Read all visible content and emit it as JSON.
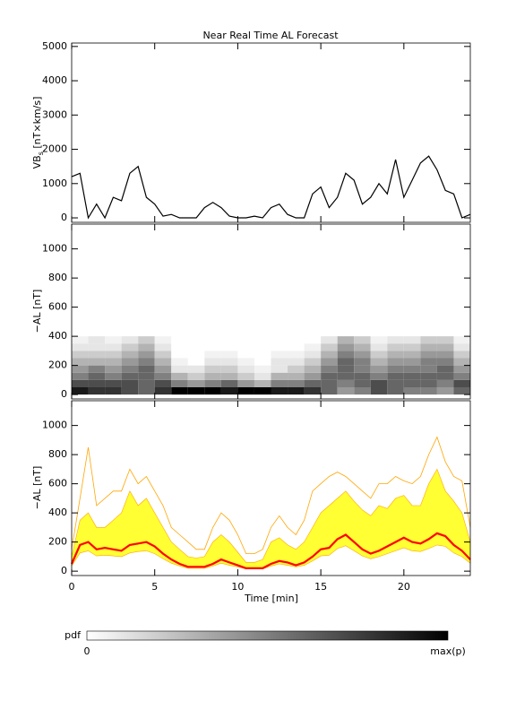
{
  "chart_data": [
    {
      "type": "line",
      "title": "Near Real Time AL Forecast",
      "ylabel": [
        "VB",
        "s",
        " [nT×km/s]"
      ],
      "x": [
        0,
        0.5,
        1,
        1.5,
        2,
        2.5,
        3,
        3.5,
        4,
        4.5,
        5,
        5.5,
        6,
        6.5,
        7,
        7.5,
        8,
        8.5,
        9,
        9.5,
        10,
        10.5,
        11,
        11.5,
        12,
        12.5,
        13,
        13.5,
        14,
        14.5,
        15,
        15.5,
        16,
        16.5,
        17,
        17.5,
        18,
        18.5,
        19,
        19.5,
        20,
        20.5,
        21,
        21.5,
        22,
        22.5,
        23,
        23.5,
        24
      ],
      "values": [
        1200,
        1300,
        0,
        400,
        0,
        600,
        500,
        1300,
        1500,
        600,
        400,
        50,
        100,
        0,
        0,
        0,
        300,
        450,
        300,
        50,
        0,
        0,
        50,
        0,
        300,
        400,
        100,
        0,
        0,
        700,
        900,
        300,
        600,
        1300,
        1100,
        400,
        600,
        1000,
        700,
        1700,
        600,
        1100,
        1600,
        1800,
        1400,
        800,
        700,
        0,
        100
      ],
      "color": "#000000",
      "xlim": [
        0,
        24
      ],
      "ylim": [
        -130,
        5100
      ],
      "yticks": [
        0,
        1000,
        2000,
        3000,
        4000,
        5000
      ]
    },
    {
      "type": "heatmap",
      "ylabel": "−AL [nT]",
      "xlim": [
        0,
        24
      ],
      "ylim": [
        -30,
        1170
      ],
      "yticks": [
        0,
        200,
        400,
        600,
        800,
        1000
      ],
      "x_edges": [
        0,
        1,
        2,
        3,
        4,
        5,
        6,
        7,
        8,
        9,
        10,
        11,
        12,
        13,
        14,
        15,
        16,
        17,
        18,
        19,
        20,
        21,
        22,
        23,
        24
      ],
      "y_edges": [
        0,
        50,
        100,
        150,
        200,
        250,
        300,
        350,
        400
      ],
      "z": [
        [
          0.9,
          0.8,
          0.8,
          0.7,
          0.6,
          0.8,
          1.0,
          1.0,
          1.0,
          0.9,
          1.0,
          1.0,
          0.9,
          0.9,
          0.8,
          0.6,
          0.4,
          0.5,
          0.7,
          0.6,
          0.5,
          0.5,
          0.4,
          0.6
        ],
        [
          0.7,
          0.7,
          0.7,
          0.7,
          0.6,
          0.7,
          0.5,
          0.4,
          0.5,
          0.6,
          0.4,
          0.3,
          0.5,
          0.5,
          0.6,
          0.6,
          0.5,
          0.6,
          0.7,
          0.6,
          0.6,
          0.6,
          0.5,
          0.7
        ],
        [
          0.5,
          0.6,
          0.5,
          0.6,
          0.6,
          0.5,
          0.3,
          0.2,
          0.3,
          0.3,
          0.2,
          0.1,
          0.3,
          0.3,
          0.4,
          0.6,
          0.6,
          0.6,
          0.5,
          0.6,
          0.6,
          0.6,
          0.6,
          0.5
        ],
        [
          0.4,
          0.5,
          0.4,
          0.5,
          0.6,
          0.4,
          0.1,
          0.1,
          0.2,
          0.2,
          0.1,
          0.05,
          0.1,
          0.2,
          0.3,
          0.5,
          0.6,
          0.5,
          0.4,
          0.5,
          0.5,
          0.5,
          0.6,
          0.4
        ],
        [
          0.3,
          0.3,
          0.3,
          0.4,
          0.5,
          0.3,
          0.05,
          0,
          0.1,
          0.1,
          0.05,
          0,
          0.1,
          0.1,
          0.2,
          0.4,
          0.6,
          0.5,
          0.3,
          0.4,
          0.4,
          0.5,
          0.5,
          0.3
        ],
        [
          0.2,
          0.2,
          0.2,
          0.3,
          0.4,
          0.2,
          0,
          0,
          0.05,
          0.05,
          0,
          0,
          0.05,
          0.05,
          0.1,
          0.3,
          0.5,
          0.4,
          0.2,
          0.3,
          0.3,
          0.4,
          0.4,
          0.2
        ],
        [
          0.1,
          0.1,
          0.1,
          0.2,
          0.3,
          0.1,
          0,
          0,
          0,
          0,
          0,
          0,
          0,
          0,
          0.05,
          0.2,
          0.4,
          0.3,
          0.1,
          0.2,
          0.2,
          0.3,
          0.3,
          0.1
        ],
        [
          0.05,
          0.1,
          0.05,
          0.1,
          0.2,
          0.05,
          0,
          0,
          0,
          0,
          0,
          0,
          0,
          0,
          0,
          0.1,
          0.3,
          0.2,
          0.05,
          0.1,
          0.1,
          0.2,
          0.2,
          0.05
        ]
      ],
      "colorbar": {
        "label": "pdf",
        "min_label": "0",
        "max_label": "max(p)"
      }
    },
    {
      "type": "band",
      "ylabel": "−AL [nT]",
      "xlabel": "Time [min]",
      "xlim": [
        0,
        24
      ],
      "xticks": [
        0,
        5,
        10,
        15,
        20
      ],
      "ylim": [
        -30,
        1170
      ],
      "yticks": [
        0,
        200,
        400,
        600,
        800,
        1000
      ],
      "x": [
        0,
        0.5,
        1,
        1.5,
        2,
        2.5,
        3,
        3.5,
        4,
        4.5,
        5,
        5.5,
        6,
        6.5,
        7,
        7.5,
        8,
        8.5,
        9,
        9.5,
        10,
        10.5,
        11,
        11.5,
        12,
        12.5,
        13,
        13.5,
        14,
        14.5,
        15,
        15.5,
        16,
        16.5,
        17,
        17.5,
        18,
        18.5,
        19,
        19.5,
        20,
        20.5,
        21,
        21.5,
        22,
        22.5,
        23,
        23.5,
        24
      ],
      "band": {
        "color": "#ffff33",
        "edge": "#ffa500",
        "lower": [
          35,
          125,
          140,
          105,
          110,
          105,
          100,
          125,
          135,
          140,
          120,
          85,
          55,
          35,
          20,
          20,
          20,
          35,
          55,
          40,
          30,
          15,
          15,
          15,
          35,
          50,
          40,
          30,
          40,
          70,
          105,
          110,
          155,
          175,
          140,
          105,
          85,
          100,
          120,
          140,
          160,
          140,
          135,
          155,
          180,
          170,
          125,
          100,
          55
        ],
        "upper": [
          100,
          350,
          400,
          300,
          300,
          350,
          400,
          550,
          450,
          500,
          400,
          300,
          200,
          150,
          100,
          90,
          100,
          200,
          250,
          200,
          130,
          60,
          60,
          80,
          200,
          230,
          180,
          150,
          200,
          300,
          400,
          450,
          500,
          550,
          480,
          420,
          380,
          450,
          430,
          500,
          520,
          450,
          450,
          600,
          700,
          550,
          480,
          400,
          200
        ]
      },
      "series": [
        {
          "color": "#ffa500",
          "values": [
            150,
            500,
            850,
            450,
            500,
            550,
            550,
            700,
            600,
            650,
            550,
            450,
            300,
            250,
            200,
            150,
            150,
            300,
            400,
            350,
            250,
            120,
            120,
            150,
            300,
            380,
            300,
            250,
            350,
            550,
            600,
            650,
            680,
            650,
            600,
            550,
            500,
            600,
            600,
            650,
            620,
            600,
            650,
            800,
            920,
            750,
            650,
            620,
            300
          ]
        },
        {
          "color": "#ff0000",
          "values": [
            50,
            180,
            200,
            150,
            160,
            150,
            140,
            180,
            190,
            200,
            170,
            120,
            80,
            50,
            30,
            30,
            30,
            50,
            80,
            60,
            40,
            20,
            20,
            20,
            50,
            70,
            60,
            40,
            60,
            100,
            150,
            160,
            220,
            250,
            200,
            150,
            120,
            140,
            170,
            200,
            230,
            200,
            190,
            220,
            260,
            240,
            180,
            140,
            80
          ]
        }
      ]
    }
  ]
}
